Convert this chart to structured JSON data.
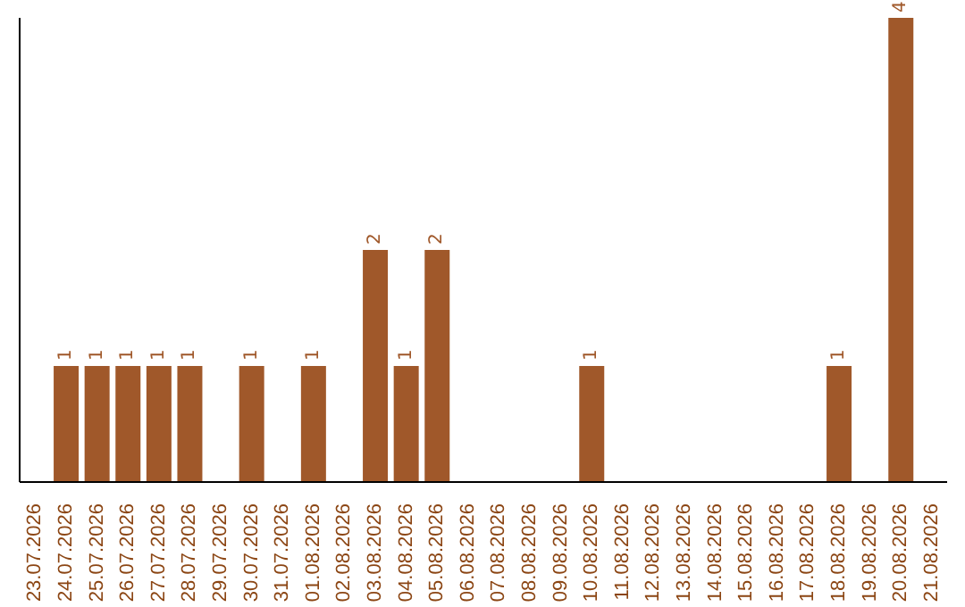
{
  "chart_data": {
    "type": "bar",
    "categories": [
      "23.07.2026",
      "24.07.2026",
      "25.07.2026",
      "26.07.2026",
      "27.07.2026",
      "28.07.2026",
      "29.07.2026",
      "30.07.2026",
      "31.07.2026",
      "01.08.2026",
      "02.08.2026",
      "03.08.2026",
      "04.08.2026",
      "05.08.2026",
      "06.08.2026",
      "07.08.2026",
      "08.08.2026",
      "09.08.2026",
      "10.08.2026",
      "11.08.2026",
      "12.08.2026",
      "13.08.2026",
      "14.08.2026",
      "15.08.2026",
      "16.08.2026",
      "17.08.2026",
      "18.08.2026",
      "19.08.2026",
      "20.08.2026",
      "21.08.2026"
    ],
    "values": [
      0,
      1,
      1,
      1,
      1,
      1,
      0,
      1,
      0,
      1,
      0,
      2,
      1,
      2,
      0,
      0,
      0,
      0,
      1,
      0,
      0,
      0,
      0,
      0,
      0,
      0,
      1,
      0,
      4,
      0
    ],
    "value_labels": [
      null,
      "1",
      "1",
      "1",
      "1",
      "1",
      null,
      "1",
      null,
      "1",
      null,
      "2",
      "1",
      "2",
      null,
      null,
      null,
      null,
      "1",
      null,
      null,
      null,
      null,
      null,
      null,
      null,
      "1",
      null,
      "4",
      null
    ],
    "color": "#a0582a",
    "tick_labels": "x",
    "grid": false,
    "legend": false
  }
}
